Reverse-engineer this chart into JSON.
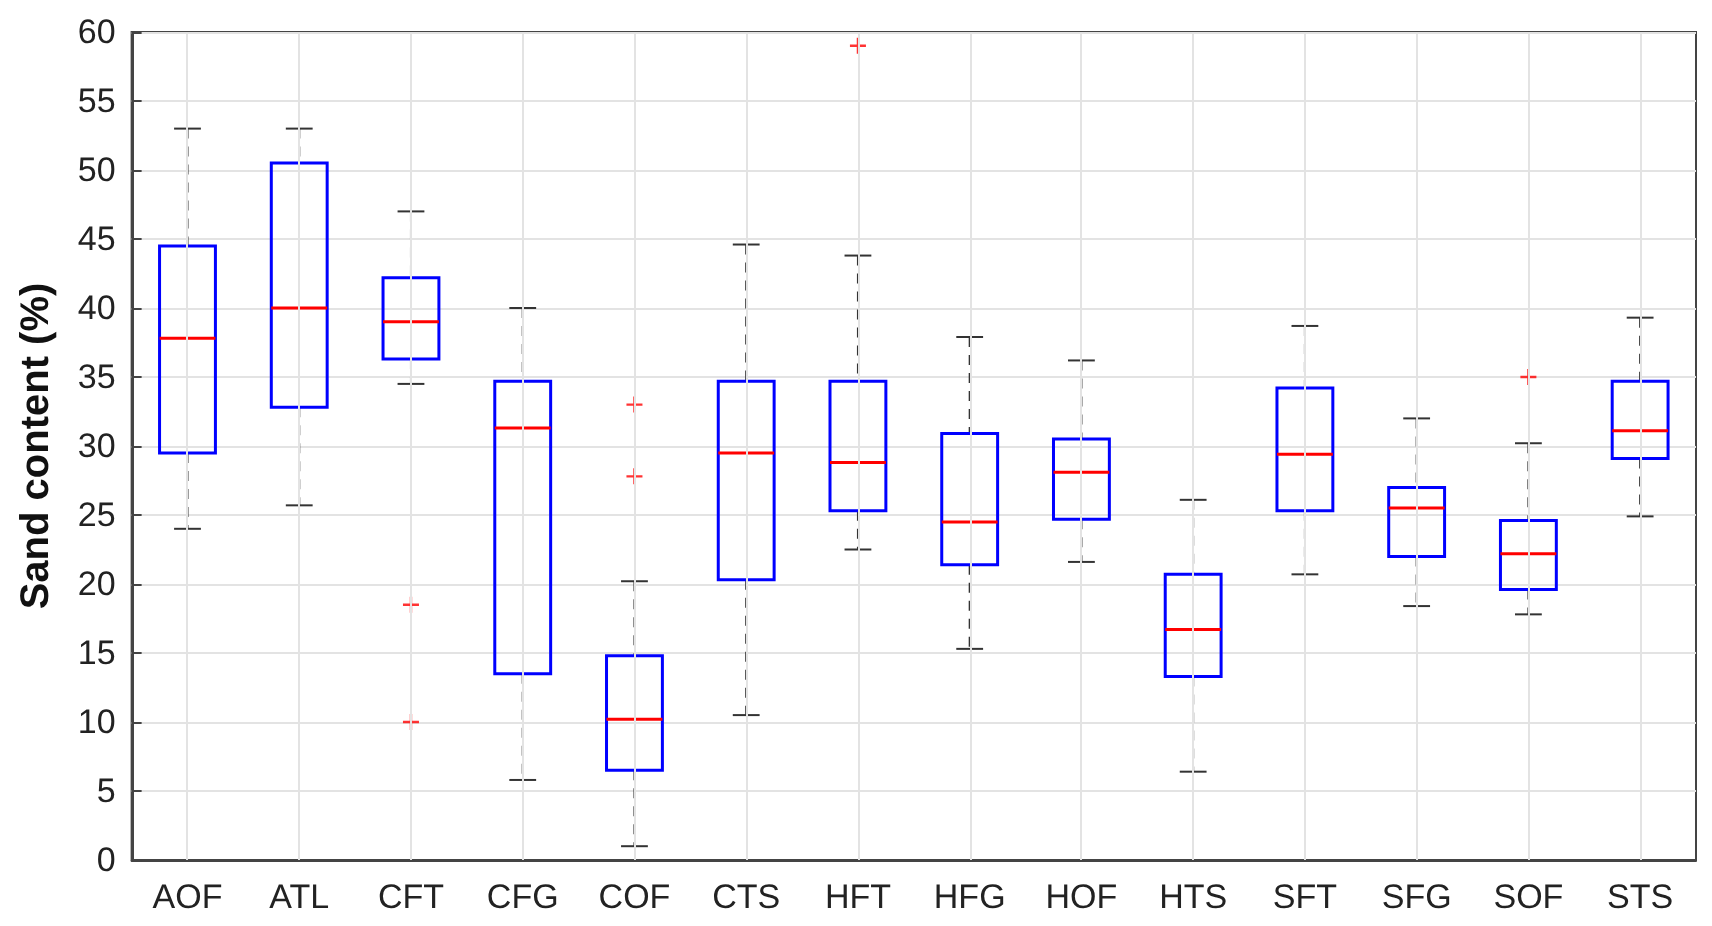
{
  "chart_data": {
    "type": "box",
    "ylabel": "Sand content (%)",
    "categories": [
      "AOF",
      "ATL",
      "CFT",
      "CFG",
      "COF",
      "CTS",
      "HFT",
      "HFG",
      "HOF",
      "HTS",
      "SFT",
      "SFG",
      "SOF",
      "STS"
    ],
    "series": [
      {
        "color": "#0000ff",
        "boxes": [
          {
            "low": 24,
            "q1": 29.5,
            "median": 37.8,
            "q3": 44.5,
            "high": 53
          },
          {
            "low": 25.7,
            "q1": 32.8,
            "median": 40,
            "q3": 50.5,
            "high": 53
          },
          {
            "low": 34.5,
            "q1": 36.3,
            "median": 39,
            "q3": 42.2,
            "high": 47,
            "outliers": [
              18.5,
              10
            ]
          },
          {
            "low": 5.8,
            "q1": 13.5,
            "median": 31.3,
            "q3": 34.7,
            "high": 40
          },
          {
            "low": 1,
            "q1": 6.5,
            "median": 10.2,
            "q3": 14.8,
            "high": 20.2,
            "outliers": [
              33,
              27.8
            ]
          },
          {
            "low": 10.5,
            "q1": 20.3,
            "median": 29.5,
            "q3": 34.7,
            "high": 44.6
          },
          {
            "low": 22.5,
            "q1": 25.3,
            "median": 28.8,
            "q3": 34.7,
            "high": 43.8,
            "outliers": [
              59
            ]
          },
          {
            "low": 15.3,
            "q1": 21.4,
            "median": 24.5,
            "q3": 30.9,
            "high": 37.9
          },
          {
            "low": 21.6,
            "q1": 24.7,
            "median": 28.1,
            "q3": 30.5,
            "high": 36.2
          },
          {
            "low": 6.4,
            "q1": 13.3,
            "median": 16.7,
            "q3": 20.7,
            "high": 26.1
          },
          {
            "low": 20.7,
            "q1": 25.3,
            "median": 29.4,
            "q3": 34.2,
            "high": 38.7
          },
          {
            "low": 18.4,
            "q1": 22,
            "median": 25.5,
            "q3": 27,
            "high": 32
          },
          {
            "low": 17.8,
            "q1": 19.6,
            "median": 22.2,
            "q3": 24.6,
            "high": 30.2,
            "outliers": [
              35
            ]
          },
          {
            "low": 24.9,
            "q1": 29.1,
            "median": 31.1,
            "q3": 34.7,
            "high": 39.3
          }
        ]
      }
    ],
    "ylim": [
      0,
      60
    ],
    "yticks": [
      0,
      5,
      10,
      15,
      20,
      25,
      30,
      35,
      40,
      45,
      50,
      55,
      60
    ],
    "grid": true
  }
}
